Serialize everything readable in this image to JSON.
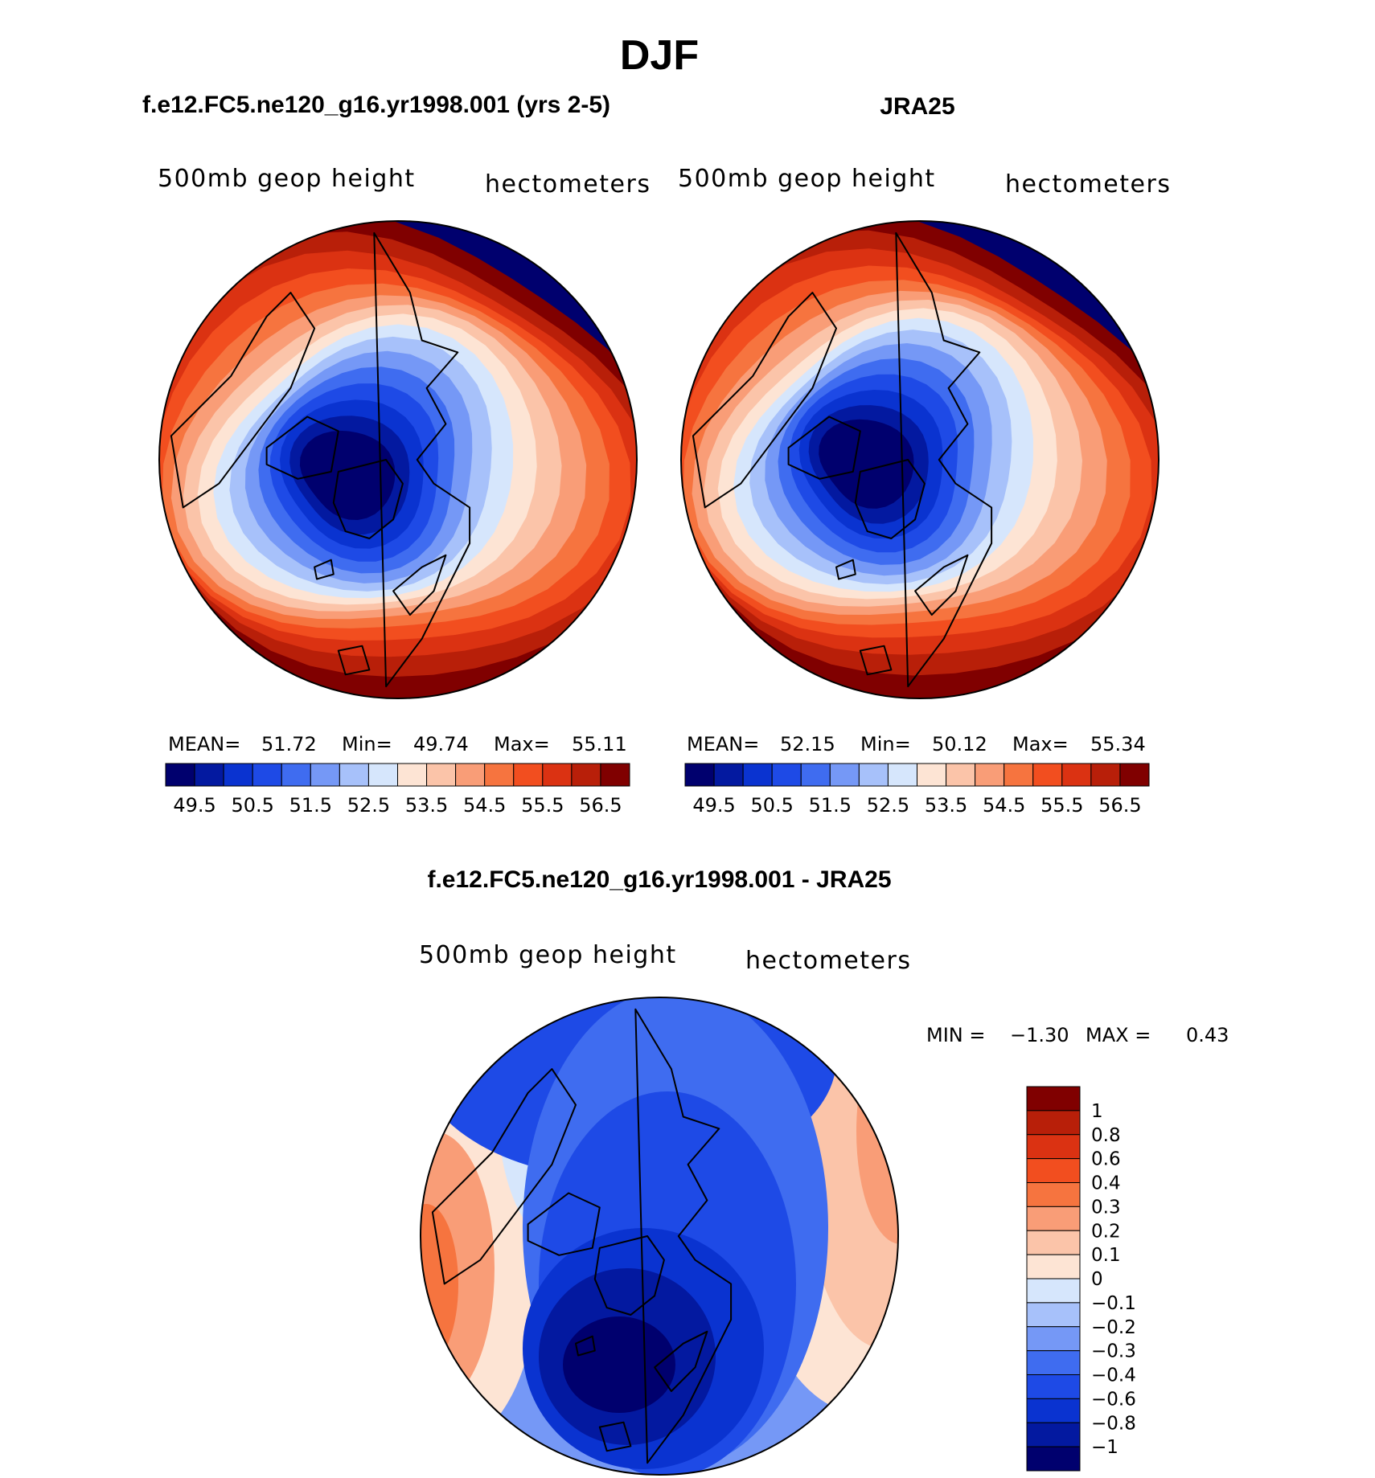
{
  "chart_data": {
    "type": "contour-map",
    "season": "DJF",
    "projection": "north polar stereographic",
    "panels": [
      {
        "title": "f.e12.FC5.ne120_g16.yr1998.001 (yrs 2-5)",
        "variable": "500mb geop height",
        "units": "hectometers",
        "stats": {
          "mean_label": "MEAN=",
          "mean": "51.72",
          "min_label": "Min=",
          "min": "49.74",
          "max_label": "Max=",
          "max": "55.11"
        },
        "colorbar_ticks": [
          "49.5",
          "50.5",
          "51.5",
          "52.5",
          "53.5",
          "54.5",
          "55.5",
          "56.5"
        ]
      },
      {
        "title": "JRA25",
        "variable": "500mb geop height",
        "units": "hectometers",
        "stats": {
          "mean_label": "MEAN=",
          "mean": "52.15",
          "min_label": "Min=",
          "min": "50.12",
          "max_label": "Max=",
          "max": "55.34"
        },
        "colorbar_ticks": [
          "49.5",
          "50.5",
          "51.5",
          "52.5",
          "53.5",
          "54.5",
          "55.5",
          "56.5"
        ]
      },
      {
        "title": "f.e12.FC5.ne120_g16.yr1998.001 - JRA25",
        "variable": "500mb geop height",
        "units": "hectometers",
        "stats": {
          "min_label": "MIN =",
          "min": "−1.30",
          "max_label": "MAX =",
          "max": "0.43"
        },
        "colorbar_levels": [
          "1",
          "0.8",
          "0.6",
          "0.4",
          "0.3",
          "0.2",
          "0.1",
          "0",
          "−0.1",
          "−0.2",
          "−0.3",
          "−0.4",
          "−0.6",
          "−0.8",
          "−1"
        ]
      }
    ],
    "colors": {
      "sequential": [
        "#00006e",
        "#0319a0",
        "#0a33d0",
        "#1e4ae6",
        "#3f6cf0",
        "#7598f6",
        "#a7c1fa",
        "#d6e6fc",
        "#fde4d4",
        "#fbc4a9",
        "#f99d77",
        "#f6743f",
        "#f24e1f",
        "#db3212",
        "#b81f09",
        "#800000"
      ],
      "difference": [
        "#00006e",
        "#0319a0",
        "#0a33d0",
        "#1e4ae6",
        "#3f6cf0",
        "#7598f6",
        "#a7c1fa",
        "#d6e6fc",
        "#fde4d4",
        "#fbc4a9",
        "#f99d77",
        "#f6743f",
        "#f24e1f",
        "#db3212",
        "#b81f09",
        "#800000"
      ]
    }
  }
}
